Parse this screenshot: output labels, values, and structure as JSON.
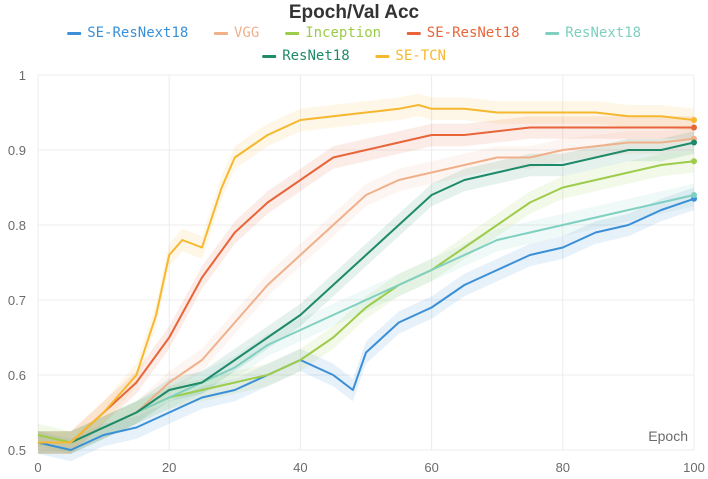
{
  "chart_data": {
    "type": "line",
    "title": "Epoch/Val Acc",
    "xlabel": "Epoch",
    "ylabel": "",
    "xlim": [
      0,
      100
    ],
    "ylim": [
      0.5,
      1.0
    ],
    "x_ticks": [
      0,
      20,
      40,
      60,
      80,
      100
    ],
    "y_ticks": [
      0.5,
      0.6,
      0.7,
      0.8,
      0.9,
      1.0
    ],
    "y_tick_labels": [
      "0.5",
      "0.6",
      "0.7",
      "0.8",
      "0.9",
      "1"
    ],
    "grid": true,
    "legend_position": "top",
    "series": [
      {
        "name": "SE-ResNext18",
        "color": "#3a8fd6",
        "points": [
          [
            0,
            0.51
          ],
          [
            5,
            0.5
          ],
          [
            10,
            0.52
          ],
          [
            15,
            0.53
          ],
          [
            20,
            0.55
          ],
          [
            25,
            0.57
          ],
          [
            30,
            0.58
          ],
          [
            35,
            0.6
          ],
          [
            40,
            0.62
          ],
          [
            45,
            0.6
          ],
          [
            48,
            0.58
          ],
          [
            50,
            0.63
          ],
          [
            55,
            0.67
          ],
          [
            60,
            0.69
          ],
          [
            65,
            0.72
          ],
          [
            70,
            0.74
          ],
          [
            75,
            0.76
          ],
          [
            80,
            0.77
          ],
          [
            85,
            0.79
          ],
          [
            90,
            0.8
          ],
          [
            95,
            0.82
          ],
          [
            100,
            0.835
          ]
        ]
      },
      {
        "name": "VGG",
        "color": "#f0b08a",
        "points": [
          [
            0,
            0.51
          ],
          [
            5,
            0.51
          ],
          [
            10,
            0.53
          ],
          [
            15,
            0.55
          ],
          [
            20,
            0.59
          ],
          [
            25,
            0.62
          ],
          [
            30,
            0.67
          ],
          [
            35,
            0.72
          ],
          [
            40,
            0.76
          ],
          [
            45,
            0.8
          ],
          [
            50,
            0.84
          ],
          [
            55,
            0.86
          ],
          [
            60,
            0.87
          ],
          [
            65,
            0.88
          ],
          [
            70,
            0.89
          ],
          [
            75,
            0.89
          ],
          [
            80,
            0.9
          ],
          [
            85,
            0.905
          ],
          [
            90,
            0.91
          ],
          [
            95,
            0.91
          ],
          [
            100,
            0.915
          ]
        ]
      },
      {
        "name": "Inception",
        "color": "#9ccc4a",
        "points": [
          [
            0,
            0.52
          ],
          [
            5,
            0.51
          ],
          [
            10,
            0.53
          ],
          [
            15,
            0.55
          ],
          [
            20,
            0.57
          ],
          [
            25,
            0.58
          ],
          [
            30,
            0.59
          ],
          [
            35,
            0.6
          ],
          [
            40,
            0.62
          ],
          [
            45,
            0.65
          ],
          [
            50,
            0.69
          ],
          [
            55,
            0.72
          ],
          [
            60,
            0.74
          ],
          [
            65,
            0.77
          ],
          [
            70,
            0.8
          ],
          [
            75,
            0.83
          ],
          [
            80,
            0.85
          ],
          [
            85,
            0.86
          ],
          [
            90,
            0.87
          ],
          [
            95,
            0.88
          ],
          [
            100,
            0.885
          ]
        ]
      },
      {
        "name": "SE-ResNet18",
        "color": "#e8653a",
        "points": [
          [
            0,
            0.51
          ],
          [
            5,
            0.51
          ],
          [
            10,
            0.55
          ],
          [
            15,
            0.59
          ],
          [
            20,
            0.65
          ],
          [
            25,
            0.73
          ],
          [
            30,
            0.79
          ],
          [
            35,
            0.83
          ],
          [
            40,
            0.86
          ],
          [
            45,
            0.89
          ],
          [
            50,
            0.9
          ],
          [
            55,
            0.91
          ],
          [
            60,
            0.92
          ],
          [
            65,
            0.92
          ],
          [
            70,
            0.925
          ],
          [
            75,
            0.93
          ],
          [
            80,
            0.93
          ],
          [
            85,
            0.93
          ],
          [
            90,
            0.93
          ],
          [
            95,
            0.93
          ],
          [
            100,
            0.93
          ]
        ]
      },
      {
        "name": "ResNext18",
        "color": "#7fd0c0",
        "points": [
          [
            0,
            0.51
          ],
          [
            5,
            0.51
          ],
          [
            10,
            0.53
          ],
          [
            15,
            0.55
          ],
          [
            20,
            0.57
          ],
          [
            25,
            0.59
          ],
          [
            30,
            0.61
          ],
          [
            35,
            0.64
          ],
          [
            40,
            0.66
          ],
          [
            45,
            0.68
          ],
          [
            50,
            0.7
          ],
          [
            55,
            0.72
          ],
          [
            60,
            0.74
          ],
          [
            65,
            0.76
          ],
          [
            70,
            0.78
          ],
          [
            75,
            0.79
          ],
          [
            80,
            0.8
          ],
          [
            85,
            0.81
          ],
          [
            90,
            0.82
          ],
          [
            95,
            0.83
          ],
          [
            100,
            0.84
          ]
        ]
      },
      {
        "name": "ResNet18",
        "color": "#1f8a6a",
        "points": [
          [
            0,
            0.51
          ],
          [
            5,
            0.51
          ],
          [
            10,
            0.53
          ],
          [
            15,
            0.55
          ],
          [
            20,
            0.58
          ],
          [
            25,
            0.59
          ],
          [
            30,
            0.62
          ],
          [
            35,
            0.65
          ],
          [
            40,
            0.68
          ],
          [
            45,
            0.72
          ],
          [
            50,
            0.76
          ],
          [
            55,
            0.8
          ],
          [
            60,
            0.84
          ],
          [
            65,
            0.86
          ],
          [
            70,
            0.87
          ],
          [
            75,
            0.88
          ],
          [
            80,
            0.88
          ],
          [
            85,
            0.89
          ],
          [
            90,
            0.9
          ],
          [
            95,
            0.9
          ],
          [
            100,
            0.91
          ]
        ]
      },
      {
        "name": "SE-TCN",
        "color": "#f5b82e",
        "points": [
          [
            0,
            0.51
          ],
          [
            5,
            0.51
          ],
          [
            10,
            0.55
          ],
          [
            15,
            0.6
          ],
          [
            18,
            0.68
          ],
          [
            20,
            0.76
          ],
          [
            22,
            0.78
          ],
          [
            25,
            0.77
          ],
          [
            28,
            0.85
          ],
          [
            30,
            0.89
          ],
          [
            35,
            0.92
          ],
          [
            40,
            0.94
          ],
          [
            45,
            0.945
          ],
          [
            50,
            0.95
          ],
          [
            55,
            0.955
          ],
          [
            58,
            0.96
          ],
          [
            60,
            0.955
          ],
          [
            65,
            0.955
          ],
          [
            70,
            0.95
          ],
          [
            75,
            0.95
          ],
          [
            80,
            0.95
          ],
          [
            85,
            0.95
          ],
          [
            90,
            0.945
          ],
          [
            95,
            0.945
          ],
          [
            100,
            0.94
          ]
        ]
      }
    ]
  }
}
